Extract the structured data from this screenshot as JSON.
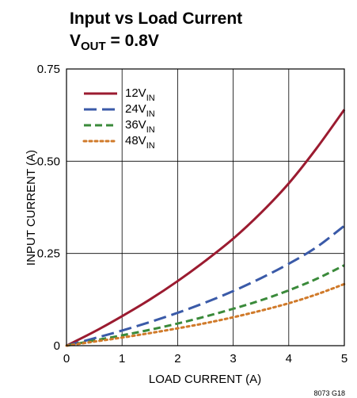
{
  "chart_data": {
    "type": "line",
    "title_line1": "Input vs Load Current",
    "title_line2_main": "V",
    "title_line2_sub": "OUT",
    "title_line2_rest": " = 0.8V",
    "xlabel": "LOAD CURRENT (A)",
    "ylabel": "INPUT CURRENT (A)",
    "xlim": [
      0,
      5
    ],
    "ylim": [
      0,
      0.75
    ],
    "x_ticks": [
      "0",
      "1",
      "2",
      "3",
      "4",
      "5"
    ],
    "y_ticks": [
      "0",
      "0.25",
      "0.50",
      "0.75"
    ],
    "grid": true,
    "legend_position": "top-left",
    "figure_code": "8073 G18",
    "series": [
      {
        "name_main": "12V",
        "name_sub": "IN",
        "color": "#9b1b30",
        "dash": "solid",
        "x": [
          0,
          0.5,
          1,
          1.5,
          2,
          2.5,
          3,
          3.5,
          4,
          4.5,
          5
        ],
        "y": [
          0,
          0.038,
          0.08,
          0.125,
          0.175,
          0.23,
          0.29,
          0.36,
          0.44,
          0.535,
          0.64
        ]
      },
      {
        "name_main": "24V",
        "name_sub": "IN",
        "color": "#3a5aa8",
        "dash": "long",
        "x": [
          0,
          0.5,
          1,
          1.5,
          2,
          2.5,
          3,
          3.5,
          4,
          4.5,
          5
        ],
        "y": [
          0,
          0.02,
          0.041,
          0.064,
          0.089,
          0.117,
          0.148,
          0.183,
          0.222,
          0.267,
          0.325
        ]
      },
      {
        "name_main": "36V",
        "name_sub": "IN",
        "color": "#3a8a3a",
        "dash": "medium",
        "x": [
          0,
          0.5,
          1,
          1.5,
          2,
          2.5,
          3,
          3.5,
          4,
          4.5,
          5
        ],
        "y": [
          0,
          0.014,
          0.028,
          0.043,
          0.06,
          0.079,
          0.1,
          0.123,
          0.15,
          0.181,
          0.218
        ]
      },
      {
        "name_main": "48V",
        "name_sub": "IN",
        "color": "#d07a2a",
        "dash": "dotted",
        "x": [
          0,
          0.5,
          1,
          1.5,
          2,
          2.5,
          3,
          3.5,
          4,
          4.5,
          5
        ],
        "y": [
          0,
          0.011,
          0.022,
          0.034,
          0.047,
          0.061,
          0.077,
          0.095,
          0.115,
          0.139,
          0.167
        ]
      }
    ]
  }
}
